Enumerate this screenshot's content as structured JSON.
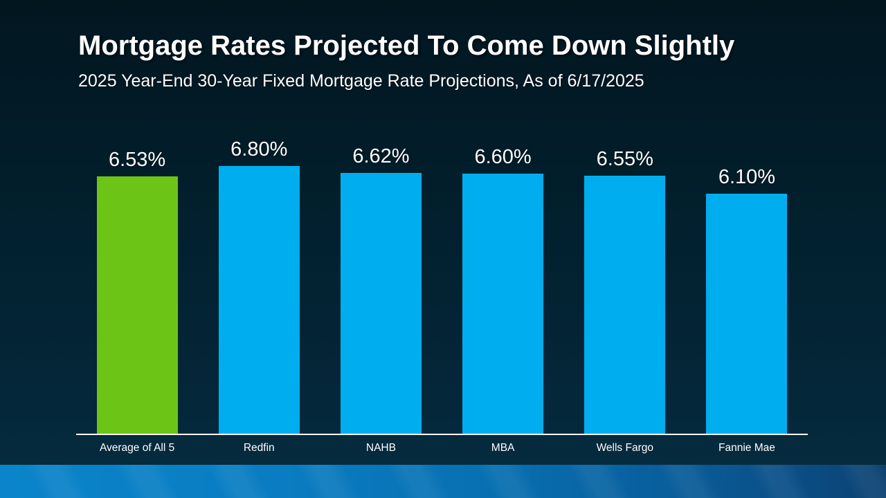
{
  "slide": {
    "title": "Mortgage Rates Projected To Come Down Slightly",
    "subtitle": "2025 Year-End 30-Year Fixed Mortgage Rate Projections, As of 6/17/2025"
  },
  "chart_data": {
    "type": "bar",
    "categories": [
      "Average of All 5",
      "Redfin",
      "NAHB",
      "MBA",
      "Wells Fargo",
      "Fannie Mae"
    ],
    "values": [
      6.53,
      6.8,
      6.62,
      6.6,
      6.55,
      6.1
    ],
    "value_labels": [
      "6.53%",
      "6.80%",
      "6.62%",
      "6.60%",
      "6.55%",
      "6.10%"
    ],
    "bar_colors": [
      "#6CC417",
      "#00AEEF",
      "#00AEEF",
      "#00AEEF",
      "#00AEEF",
      "#00AEEF"
    ],
    "title": "Mortgage Rates Projected To Come Down Slightly",
    "subtitle": "2025 Year-End 30-Year Fixed Mortgage Rate Projections, As of 6/17/2025",
    "xlabel": "",
    "ylabel": "",
    "ylim": [
      0,
      6.8
    ],
    "yaxis_visible": false,
    "grid": false,
    "legend": false,
    "highlight_category": "Average of All 5",
    "highlight_color": "#6CC417",
    "default_bar_color": "#00AEEF",
    "axis_line_color": "#FFFFFF",
    "label_color": "#FFFFFF"
  },
  "colors": {
    "background_top": "#021620",
    "background_bottom": "#052c40",
    "footer_stripe_left": "#0A84CA",
    "footer_stripe_right": "#0C4170",
    "text": "#FFFFFF"
  }
}
